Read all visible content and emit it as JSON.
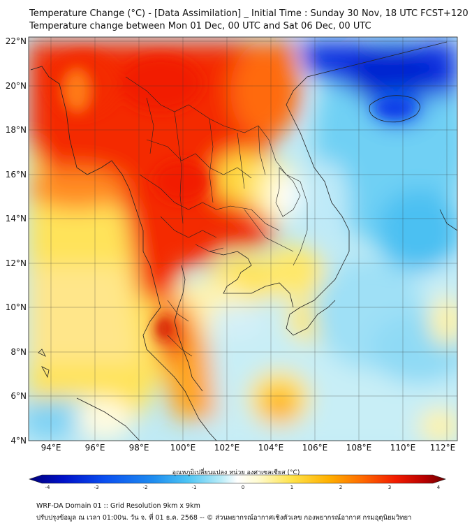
{
  "header": {
    "title_line1": "Temperature Change (°C) - [Data Assimilation] _ Initial Time : Sunday 30 Nov, 18 UTC FCST+120",
    "title_line2": "Temperature change between Mon 01 Dec, 00 UTC and Sat 06 Dec, 00 UTC"
  },
  "map": {
    "lat_labels": [
      "22°N",
      "20°N",
      "18°N",
      "16°N",
      "14°N",
      "12°N",
      "10°N",
      "8°N",
      "6°N",
      "4°N"
    ],
    "lon_labels": [
      "94°E",
      "96°E",
      "98°E",
      "100°E",
      "102°E",
      "104°E",
      "106°E",
      "108°E",
      "110°E",
      "112°E"
    ],
    "region": "Mainland Southeast Asia",
    "field": "temperature change (°C)"
  },
  "colorbar": {
    "label": "อุณหภูมิเปลี่ยนแปลง หน่วย องศาเซลเซียส (°C)",
    "ticks": [
      "-4",
      "-3",
      "-2",
      "-1",
      "0",
      "1",
      "2",
      "3",
      "4"
    ],
    "min": -4,
    "max": 4,
    "colors": [
      "#00007a",
      "#0010c8",
      "#0a4ef0",
      "#1f8ef0",
      "#4cc4f4",
      "#9fe4f6",
      "#ffffff",
      "#fff7b0",
      "#ffe34a",
      "#ffb000",
      "#ff6a00",
      "#f21c00",
      "#b80000",
      "#6b0000"
    ]
  },
  "footer": {
    "line1": "WRF-DA Domain 01 :: Grid Resolution 9km x 9km",
    "line2": "ปรับปรุงข้อมูล ณ เวลา 01:00น. วัน จ. ที่ 01 ธ.ค. 2568 -- © ส่วนพยากรณ์อากาศเชิงตัวเลข กองพยากรณ์อากาศ กรมอุตุนิยมวิทยา"
  }
}
